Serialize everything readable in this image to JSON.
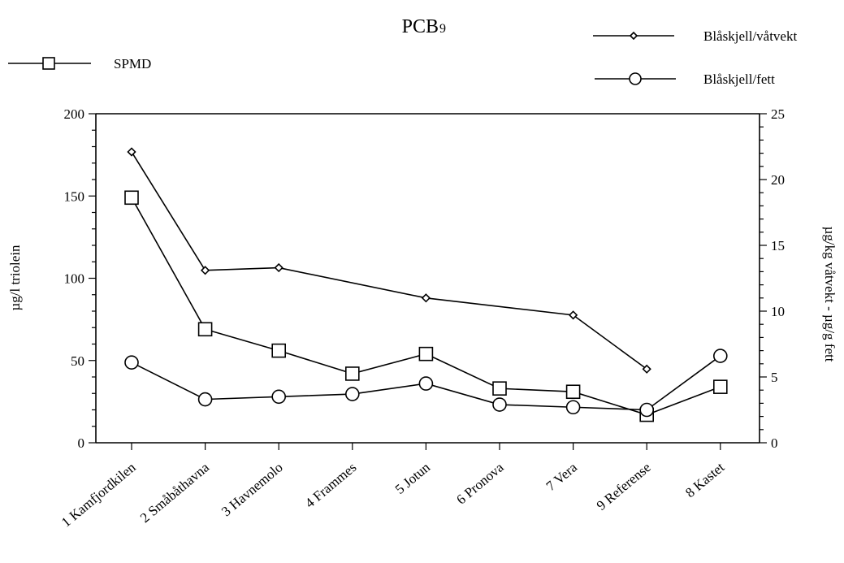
{
  "chart_data": {
    "type": "line",
    "title": "PCB",
    "title_subscript": "9",
    "categories": [
      "1 Kamfjordkilen",
      "2 Småbåthavna",
      "3 Havnemolo",
      "4 Frammes",
      "5 Jotun",
      "6 Pronova",
      "7 Vera",
      "9 Referense",
      "8 Kastet"
    ],
    "y_left": {
      "label": "µg/l triolein",
      "range": [
        0,
        200
      ],
      "ticks": [
        0,
        50,
        100,
        150,
        200
      ]
    },
    "y_right": {
      "label": "µg/kg våtvekt - µg/g fett",
      "range": [
        0,
        25
      ],
      "ticks": [
        0,
        5,
        10,
        15,
        20,
        25
      ]
    },
    "series": [
      {
        "name": "SPMD",
        "axis": "left",
        "marker": "square",
        "values": [
          149,
          69,
          56,
          42,
          54,
          33,
          31,
          17,
          34
        ]
      },
      {
        "name": "Blåskjell/våtvekt",
        "axis": "right",
        "marker": "diamond",
        "values": [
          22.1,
          13.1,
          13.3,
          null,
          11.0,
          null,
          9.7,
          5.6,
          null
        ]
      },
      {
        "name": "Blåskjell/fett",
        "axis": "right",
        "marker": "circle",
        "values": [
          6.1,
          3.3,
          3.5,
          3.7,
          4.5,
          2.9,
          2.7,
          2.5,
          6.6
        ]
      }
    ],
    "grid": false,
    "legend": "top"
  }
}
